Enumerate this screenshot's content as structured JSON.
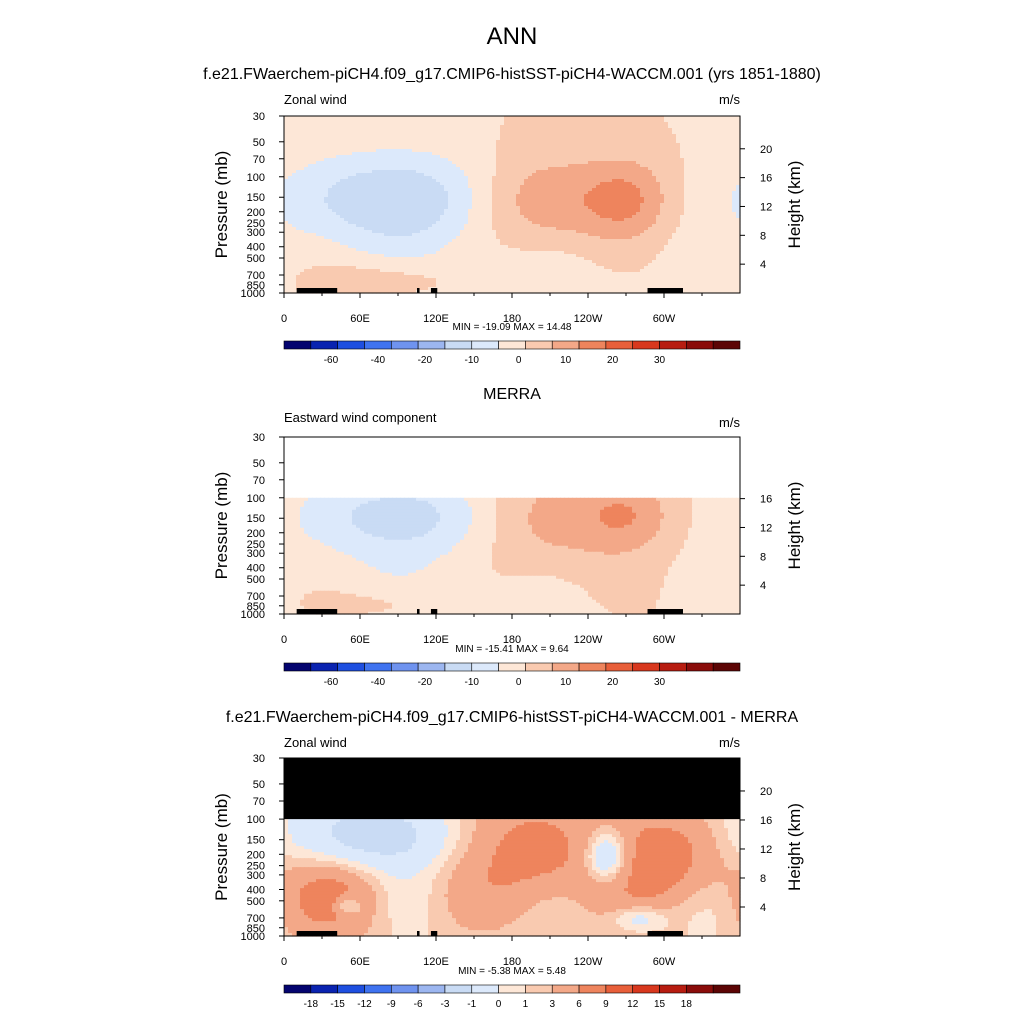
{
  "figure": {
    "title": "ANN"
  },
  "palettes": {
    "main": [
      "#04046f",
      "#0a23b0",
      "#1e4fe0",
      "#3f73f0",
      "#6f93ef",
      "#9cb6f0",
      "#c9dbf4",
      "#dce9fb",
      "#fde7d7",
      "#f9cab0",
      "#f3a888",
      "#ee845d",
      "#e85f3a",
      "#d8381e",
      "#b71c10",
      "#8a0c0a",
      "#5c0505"
    ],
    "diff": [
      "#04046f",
      "#0a23b0",
      "#1e4fe0",
      "#3f73f0",
      "#6f93ef",
      "#9cb6f0",
      "#c9dbf4",
      "#dce9fb",
      "#fde7d7",
      "#f9cab0",
      "#f3a888",
      "#ee845d",
      "#e85f3a",
      "#d8381e",
      "#b71c10",
      "#8a0c0a",
      "#5c0505"
    ]
  },
  "chart_data": [
    {
      "type": "contour",
      "heading": "f.e21.FWaerchem-piCH4.f09_g17.CMIP6-histSST-piCH4-WACCM.001 (yrs 1851-1880)",
      "subtitle_left": "Zonal wind",
      "units": "m/s",
      "ylabel": "Pressure (mb)",
      "y2label": "Height (km)",
      "x_ticks": [
        "0",
        "60E",
        "120E",
        "180",
        "120W",
        "60W"
      ],
      "y_ticks": [
        "30",
        "50",
        "70",
        "100",
        "150",
        "200",
        "250",
        "300",
        "400",
        "500",
        "700",
        "850",
        "1000"
      ],
      "y2_ticks": [
        "20",
        "16",
        "12",
        "8",
        "4"
      ],
      "stats": "MIN = -19.09  MAX =  14.48",
      "min": -19.09,
      "max": 14.48,
      "top_pressure": 30,
      "colorbar_labels": [
        "-60",
        "-40",
        "-20",
        "-10",
        "0",
        "10",
        "20",
        "30"
      ],
      "blobs": [
        {
          "lon": 92,
          "p": 150,
          "dlon": 65,
          "dlogp": 0.28,
          "amp": -13
        },
        {
          "lon": 200,
          "p": 170,
          "dlon": 45,
          "dlogp": 0.3,
          "amp": 13.5
        },
        {
          "lon": 272,
          "p": 160,
          "dlon": 25,
          "dlogp": 0.25,
          "amp": 10.5
        },
        {
          "lon": 160,
          "p": 350,
          "dlon": 110,
          "dlogp": 0.45,
          "amp": -4
        },
        {
          "lon": 80,
          "p": 750,
          "dlon": 40,
          "dlogp": 0.12,
          "amp": 5
        }
      ]
    },
    {
      "type": "contour",
      "heading": "MERRA",
      "subtitle_left": "Eastward wind component",
      "units": "m/s",
      "ylabel": "Pressure (mb)",
      "y2label": "Height (km)",
      "x_ticks": [
        "0",
        "60E",
        "120E",
        "180",
        "120W",
        "60W"
      ],
      "y_ticks": [
        "30",
        "50",
        "70",
        "100",
        "150",
        "200",
        "250",
        "300",
        "400",
        "500",
        "700",
        "850",
        "1000"
      ],
      "y2_ticks": [
        "16",
        "12",
        "8",
        "4"
      ],
      "stats": "MIN = -15.41  MAX =   9.64",
      "min": -15.41,
      "max": 9.64,
      "top_pressure": 100,
      "colorbar_labels": [
        "-60",
        "-40",
        "-20",
        "-10",
        "0",
        "10",
        "20",
        "30"
      ],
      "blobs": [
        {
          "lon": 95,
          "p": 140,
          "dlon": 60,
          "dlogp": 0.25,
          "amp": -11
        },
        {
          "lon": 205,
          "p": 160,
          "dlon": 45,
          "dlogp": 0.32,
          "amp": 9.5
        },
        {
          "lon": 272,
          "p": 140,
          "dlon": 25,
          "dlogp": 0.22,
          "amp": 8
        },
        {
          "lon": 120,
          "p": 400,
          "dlon": 90,
          "dlogp": 0.45,
          "amp": -3
        },
        {
          "lon": 80,
          "p": 800,
          "dlon": 40,
          "dlogp": 0.1,
          "amp": 3
        }
      ]
    },
    {
      "type": "contour",
      "heading": "f.e21.FWaerchem-piCH4.f09_g17.CMIP6-histSST-piCH4-WACCM.001 - MERRA",
      "subtitle_left": "Zonal wind",
      "units": "m/s",
      "ylabel": "Pressure (mb)",
      "y2label": "Height (km)",
      "x_ticks": [
        "0",
        "60E",
        "120E",
        "180",
        "120W",
        "60W"
      ],
      "y_ticks": [
        "30",
        "50",
        "70",
        "100",
        "150",
        "200",
        "250",
        "300",
        "400",
        "500",
        "700",
        "850",
        "1000"
      ],
      "y2_ticks": [
        "20",
        "16",
        "12",
        "8",
        "4"
      ],
      "stats": "MIN =  -5.38  MAX =   5.48",
      "min": -5.38,
      "max": 5.48,
      "top_pressure": 100,
      "masked_above_pressure": 100,
      "colorbar_labels": [
        "-18",
        "-15",
        "-12",
        "-9",
        "-6",
        "-3",
        "-1",
        "0",
        "1",
        "3",
        "6",
        "9",
        "12",
        "15",
        "18"
      ],
      "blobs": [
        {
          "lon": 70,
          "p": 140,
          "dlon": 45,
          "dlogp": 0.22,
          "amp": -4.5
        },
        {
          "lon": 255,
          "p": 210,
          "dlon": 12,
          "dlogp": 0.15,
          "amp": -5.3
        },
        {
          "lon": 195,
          "p": 200,
          "dlon": 40,
          "dlogp": 0.35,
          "amp": 4.2
        },
        {
          "lon": 300,
          "p": 220,
          "dlon": 30,
          "dlogp": 0.3,
          "amp": 4.5
        },
        {
          "lon": 40,
          "p": 450,
          "dlon": 30,
          "dlogp": 0.25,
          "amp": 3.5
        },
        {
          "lon": 50,
          "p": 550,
          "dlon": 8,
          "dlogp": 0.06,
          "amp": -3.5
        },
        {
          "lon": 280,
          "p": 700,
          "dlon": 15,
          "dlogp": 0.08,
          "amp": -3
        }
      ]
    }
  ]
}
